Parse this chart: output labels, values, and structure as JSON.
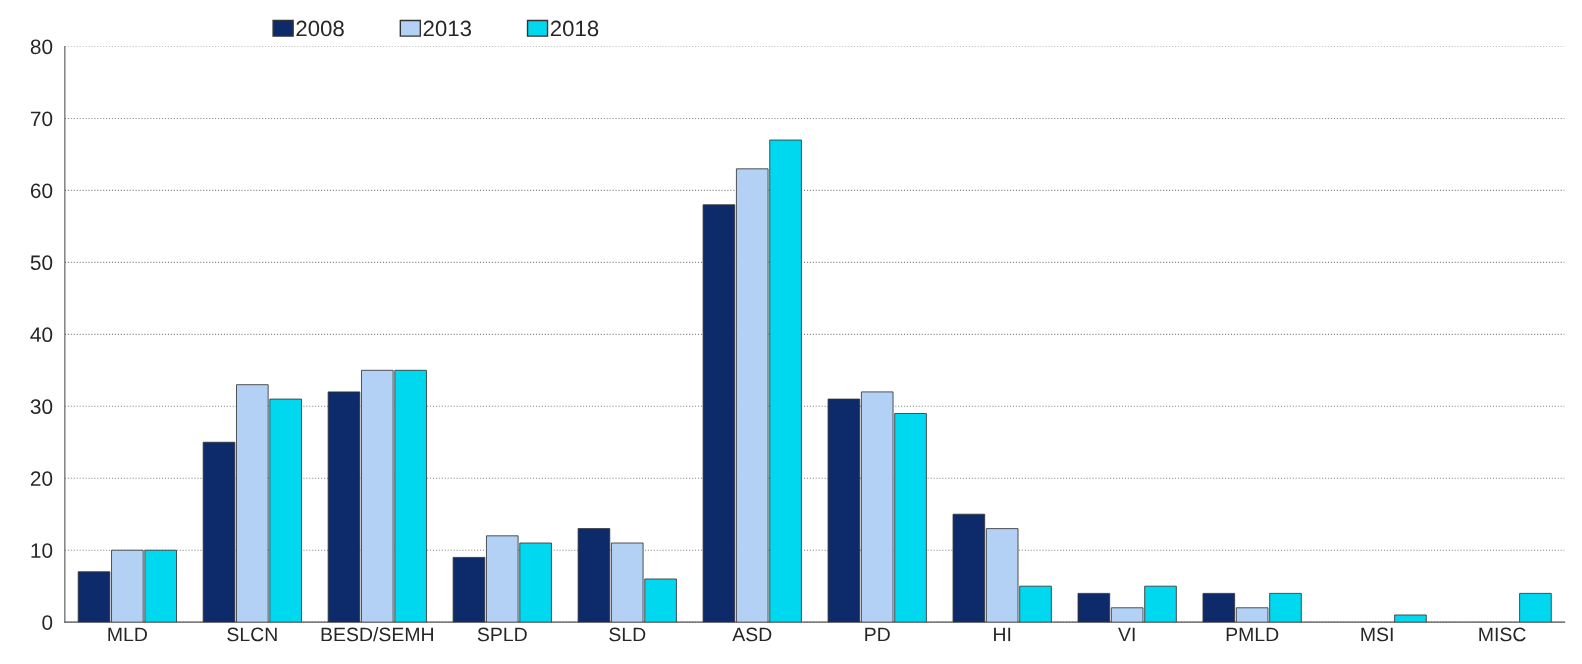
{
  "chart_data": {
    "type": "bar",
    "categories": [
      "MLD",
      "SLCN",
      "BESD/SEMH",
      "SPLD",
      "SLD",
      "ASD",
      "PD",
      "HI",
      "VI",
      "PMLD",
      "MSI",
      "MISC"
    ],
    "series": [
      {
        "name": "2008",
        "color": "#0d2a6b",
        "values": [
          7,
          25,
          32,
          9,
          13,
          58,
          31,
          15,
          4,
          4,
          null,
          null
        ]
      },
      {
        "name": "2013",
        "color": "#b3d1f5",
        "values": [
          10,
          33,
          35,
          12,
          11,
          63,
          32,
          13,
          2,
          2,
          null,
          null
        ]
      },
      {
        "name": "2018",
        "color": "#00d8f0",
        "values": [
          10,
          31,
          35,
          11,
          6,
          67,
          29,
          5,
          5,
          4,
          1,
          4
        ]
      }
    ],
    "ylim": [
      0,
      80
    ],
    "yticks": [
      0,
      10,
      20,
      30,
      40,
      50,
      60,
      70,
      80
    ],
    "grid": "y",
    "legend": "top"
  }
}
